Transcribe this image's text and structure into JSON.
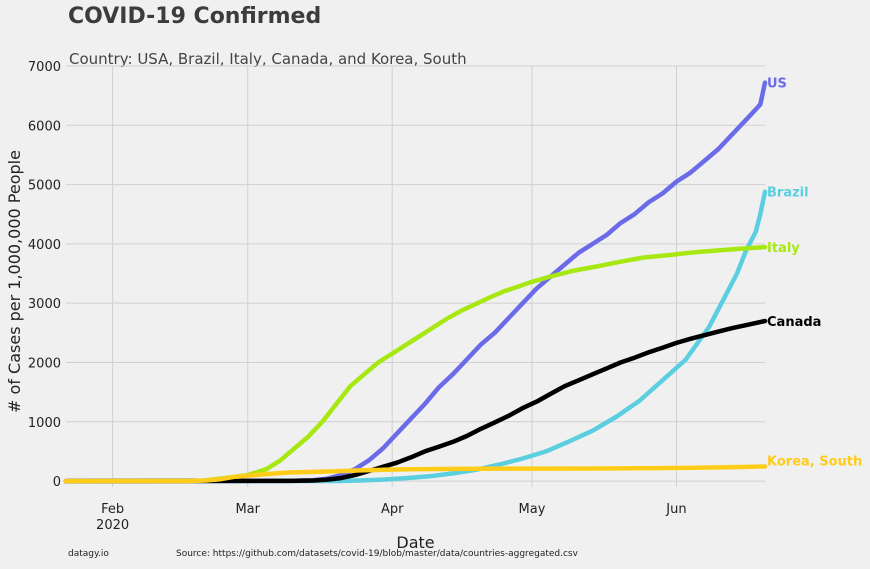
{
  "chart_data": {
    "type": "line",
    "title": "COVID-19 Confirmed",
    "subtitle": "Country: USA, Brazil, Italy, Canada, and Korea, South",
    "xlabel": "Date",
    "ylabel": "# of Cases per 1,000,000 People",
    "footer_left": "datagy.io",
    "footer_source": "Source: https://github.com/datasets/covid-19/blob/master/data/countries-aggregated.csv",
    "ylim": [
      -100,
      7000
    ],
    "xlim": [
      "2020-01-22",
      "2020-06-20"
    ],
    "yticks": [
      0,
      1000,
      2000,
      3000,
      4000,
      5000,
      6000,
      7000
    ],
    "ytick_labels": [
      "0",
      "1000",
      "2000",
      "3000",
      "4000",
      "5000",
      "6000",
      "7000"
    ],
    "xticks": [
      {
        "date": "2020-02-01",
        "label": "Feb",
        "sublabel": "2020"
      },
      {
        "date": "2020-03-01",
        "label": "Mar",
        "sublabel": ""
      },
      {
        "date": "2020-04-01",
        "label": "Apr",
        "sublabel": ""
      },
      {
        "date": "2020-05-01",
        "label": "May",
        "sublabel": ""
      },
      {
        "date": "2020-06-01",
        "label": "Jun",
        "sublabel": ""
      }
    ],
    "grid": true,
    "series": [
      {
        "name": "US",
        "color": "#6b6bea",
        "points": [
          [
            "2020-01-22",
            0
          ],
          [
            "2020-03-10",
            3
          ],
          [
            "2020-03-15",
            15
          ],
          [
            "2020-03-18",
            40
          ],
          [
            "2020-03-21",
            100
          ],
          [
            "2020-03-24",
            200
          ],
          [
            "2020-03-27",
            350
          ],
          [
            "2020-03-30",
            550
          ],
          [
            "2020-04-02",
            800
          ],
          [
            "2020-04-05",
            1050
          ],
          [
            "2020-04-08",
            1300
          ],
          [
            "2020-04-11",
            1580
          ],
          [
            "2020-04-14",
            1800
          ],
          [
            "2020-04-17",
            2050
          ],
          [
            "2020-04-20",
            2300
          ],
          [
            "2020-04-23",
            2500
          ],
          [
            "2020-04-26",
            2750
          ],
          [
            "2020-04-29",
            3000
          ],
          [
            "2020-05-02",
            3250
          ],
          [
            "2020-05-05",
            3450
          ],
          [
            "2020-05-08",
            3650
          ],
          [
            "2020-05-11",
            3850
          ],
          [
            "2020-05-14",
            4000
          ],
          [
            "2020-05-17",
            4150
          ],
          [
            "2020-05-20",
            4350
          ],
          [
            "2020-05-23",
            4500
          ],
          [
            "2020-05-26",
            4700
          ],
          [
            "2020-05-29",
            4850
          ],
          [
            "2020-06-01",
            5050
          ],
          [
            "2020-06-04",
            5200
          ],
          [
            "2020-06-07",
            5400
          ],
          [
            "2020-06-10",
            5600
          ],
          [
            "2020-06-13",
            5850
          ],
          [
            "2020-06-16",
            6100
          ],
          [
            "2020-06-19",
            6350
          ],
          [
            "2020-06-20",
            6720
          ]
        ]
      },
      {
        "name": "Brazil",
        "color": "#5bcfe0",
        "points": [
          [
            "2020-01-22",
            0
          ],
          [
            "2020-03-20",
            2
          ],
          [
            "2020-03-25",
            10
          ],
          [
            "2020-03-30",
            25
          ],
          [
            "2020-04-04",
            50
          ],
          [
            "2020-04-09",
            80
          ],
          [
            "2020-04-14",
            130
          ],
          [
            "2020-04-19",
            190
          ],
          [
            "2020-04-24",
            280
          ],
          [
            "2020-04-29",
            380
          ],
          [
            "2020-05-04",
            500
          ],
          [
            "2020-05-09",
            670
          ],
          [
            "2020-05-14",
            850
          ],
          [
            "2020-05-19",
            1080
          ],
          [
            "2020-05-24",
            1350
          ],
          [
            "2020-05-29",
            1700
          ],
          [
            "2020-06-03",
            2050
          ],
          [
            "2020-06-08",
            2600
          ],
          [
            "2020-06-11",
            3050
          ],
          [
            "2020-06-14",
            3500
          ],
          [
            "2020-06-16",
            3900
          ],
          [
            "2020-06-18",
            4200
          ],
          [
            "2020-06-19",
            4500
          ],
          [
            "2020-06-20",
            4880
          ]
        ]
      },
      {
        "name": "Italy",
        "color": "#a8e812",
        "points": [
          [
            "2020-01-22",
            0
          ],
          [
            "2020-02-20",
            5
          ],
          [
            "2020-02-25",
            50
          ],
          [
            "2020-03-01",
            100
          ],
          [
            "2020-03-05",
            200
          ],
          [
            "2020-03-08",
            350
          ],
          [
            "2020-03-11",
            550
          ],
          [
            "2020-03-14",
            750
          ],
          [
            "2020-03-17",
            1000
          ],
          [
            "2020-03-20",
            1300
          ],
          [
            "2020-03-23",
            1600
          ],
          [
            "2020-03-26",
            1800
          ],
          [
            "2020-03-29",
            2000
          ],
          [
            "2020-04-01",
            2150
          ],
          [
            "2020-04-04",
            2300
          ],
          [
            "2020-04-07",
            2450
          ],
          [
            "2020-04-10",
            2600
          ],
          [
            "2020-04-13",
            2750
          ],
          [
            "2020-04-16",
            2880
          ],
          [
            "2020-04-19",
            2990
          ],
          [
            "2020-04-22",
            3100
          ],
          [
            "2020-04-25",
            3200
          ],
          [
            "2020-04-28",
            3280
          ],
          [
            "2020-05-01",
            3360
          ],
          [
            "2020-05-05",
            3450
          ],
          [
            "2020-05-10",
            3550
          ],
          [
            "2020-05-15",
            3620
          ],
          [
            "2020-05-20",
            3700
          ],
          [
            "2020-05-25",
            3770
          ],
          [
            "2020-05-30",
            3810
          ],
          [
            "2020-06-05",
            3860
          ],
          [
            "2020-06-10",
            3890
          ],
          [
            "2020-06-15",
            3920
          ],
          [
            "2020-06-20",
            3945
          ]
        ]
      },
      {
        "name": "Canada",
        "color": "#000000",
        "points": [
          [
            "2020-01-22",
            0
          ],
          [
            "2020-03-10",
            3
          ],
          [
            "2020-03-15",
            10
          ],
          [
            "2020-03-18",
            25
          ],
          [
            "2020-03-21",
            50
          ],
          [
            "2020-03-24",
            100
          ],
          [
            "2020-03-27",
            170
          ],
          [
            "2020-03-30",
            240
          ],
          [
            "2020-04-02",
            310
          ],
          [
            "2020-04-05",
            400
          ],
          [
            "2020-04-08",
            500
          ],
          [
            "2020-04-11",
            580
          ],
          [
            "2020-04-14",
            660
          ],
          [
            "2020-04-17",
            760
          ],
          [
            "2020-04-20",
            880
          ],
          [
            "2020-04-23",
            990
          ],
          [
            "2020-04-26",
            1100
          ],
          [
            "2020-04-29",
            1230
          ],
          [
            "2020-05-02",
            1340
          ],
          [
            "2020-05-05",
            1470
          ],
          [
            "2020-05-08",
            1600
          ],
          [
            "2020-05-11",
            1700
          ],
          [
            "2020-05-14",
            1800
          ],
          [
            "2020-05-17",
            1900
          ],
          [
            "2020-05-20",
            2000
          ],
          [
            "2020-05-23",
            2080
          ],
          [
            "2020-05-26",
            2170
          ],
          [
            "2020-05-29",
            2250
          ],
          [
            "2020-06-01",
            2330
          ],
          [
            "2020-06-04",
            2400
          ],
          [
            "2020-06-07",
            2460
          ],
          [
            "2020-06-10",
            2520
          ],
          [
            "2020-06-13",
            2580
          ],
          [
            "2020-06-16",
            2630
          ],
          [
            "2020-06-20",
            2700
          ]
        ]
      },
      {
        "name": "Korea, South",
        "color": "#ffcc1a",
        "points": [
          [
            "2020-01-22",
            0
          ],
          [
            "2020-02-18",
            2
          ],
          [
            "2020-02-21",
            10
          ],
          [
            "2020-02-24",
            30
          ],
          [
            "2020-02-27",
            70
          ],
          [
            "2020-03-01",
            90
          ],
          [
            "2020-03-04",
            110
          ],
          [
            "2020-03-07",
            130
          ],
          [
            "2020-03-10",
            145
          ],
          [
            "2020-03-15",
            155
          ],
          [
            "2020-03-20",
            165
          ],
          [
            "2020-03-25",
            180
          ],
          [
            "2020-03-30",
            190
          ],
          [
            "2020-04-05",
            200
          ],
          [
            "2020-04-15",
            205
          ],
          [
            "2020-04-25",
            210
          ],
          [
            "2020-05-05",
            210
          ],
          [
            "2020-05-15",
            212
          ],
          [
            "2020-05-25",
            217
          ],
          [
            "2020-06-05",
            225
          ],
          [
            "2020-06-15",
            237
          ],
          [
            "2020-06-20",
            245
          ]
        ]
      }
    ]
  }
}
